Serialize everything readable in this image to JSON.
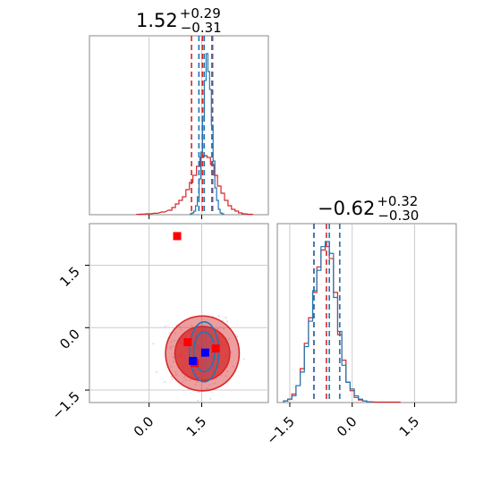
{
  "colors": {
    "red": "#d62728",
    "blue": "#1f77b4",
    "marker_red": "#ff0000",
    "marker_blue": "#0000ff",
    "grid": "#cccccc"
  },
  "chart_data": [
    {
      "type": "histogram",
      "panel": "marginal-param-1",
      "title": {
        "median": "1.52",
        "plus": "+0.29",
        "minus": "−0.31"
      },
      "xlim": [
        -1.7,
        3.4
      ],
      "x_ticks": [
        "0.0",
        "1.5"
      ],
      "series": [
        {
          "color": "red",
          "quantiles": [
            1.21,
            1.52,
            1.81
          ],
          "bins": [
            [
              -0.3,
              0.002
            ],
            [
              -0.2,
              0.003
            ],
            [
              0.0,
              0.005
            ],
            [
              0.2,
              0.008
            ],
            [
              0.4,
              0.015
            ],
            [
              0.6,
              0.025
            ],
            [
              0.7,
              0.04
            ],
            [
              0.8,
              0.06
            ],
            [
              0.9,
              0.08
            ],
            [
              1.0,
              0.1
            ],
            [
              1.1,
              0.14
            ],
            [
              1.2,
              0.18
            ],
            [
              1.3,
              0.22
            ],
            [
              1.4,
              0.27
            ],
            [
              1.5,
              0.32
            ],
            [
              1.6,
              0.33
            ],
            [
              1.7,
              0.32
            ],
            [
              1.8,
              0.28
            ],
            [
              1.9,
              0.22
            ],
            [
              2.0,
              0.16
            ],
            [
              2.1,
              0.12
            ],
            [
              2.2,
              0.08
            ],
            [
              2.3,
              0.05
            ],
            [
              2.4,
              0.03
            ],
            [
              2.5,
              0.02
            ],
            [
              2.6,
              0.01
            ],
            [
              2.7,
              0.005
            ],
            [
              2.9,
              0.002
            ]
          ]
        },
        {
          "color": "blue",
          "quantiles": [
            1.42,
            1.57,
            1.79
          ],
          "bins": [
            [
              1.2,
              0.005
            ],
            [
              1.25,
              0.01
            ],
            [
              1.3,
              0.02
            ],
            [
              1.35,
              0.05
            ],
            [
              1.4,
              0.1
            ],
            [
              1.45,
              0.2
            ],
            [
              1.5,
              0.35
            ],
            [
              1.55,
              0.55
            ],
            [
              1.6,
              0.75
            ],
            [
              1.65,
              0.9
            ],
            [
              1.7,
              0.8
            ],
            [
              1.75,
              0.7
            ],
            [
              1.8,
              0.5
            ],
            [
              1.85,
              0.3
            ],
            [
              1.9,
              0.15
            ],
            [
              1.95,
              0.08
            ],
            [
              2.0,
              0.03
            ],
            [
              2.05,
              0.01
            ],
            [
              2.1,
              0.005
            ]
          ]
        }
      ]
    },
    {
      "type": "histogram",
      "panel": "marginal-param-2",
      "title": {
        "median": "−0.62",
        "plus": "+0.32",
        "minus": "−0.30"
      },
      "xlim": [
        -1.8,
        2.5
      ],
      "x_ticks": [
        "−1.5",
        "0.0",
        "1.5"
      ],
      "series": [
        {
          "color": "red",
          "quantiles": [
            -0.92,
            -0.62,
            -0.3
          ],
          "bins": [
            [
              -1.6,
              0.01
            ],
            [
              -1.5,
              0.02
            ],
            [
              -1.4,
              0.05
            ],
            [
              -1.3,
              0.1
            ],
            [
              -1.2,
              0.2
            ],
            [
              -1.1,
              0.35
            ],
            [
              -1.0,
              0.5
            ],
            [
              -0.9,
              0.65
            ],
            [
              -0.8,
              0.8
            ],
            [
              -0.7,
              0.9
            ],
            [
              -0.6,
              0.92
            ],
            [
              -0.5,
              0.85
            ],
            [
              -0.4,
              0.65
            ],
            [
              -0.3,
              0.4
            ],
            [
              -0.2,
              0.25
            ],
            [
              -0.1,
              0.12
            ],
            [
              0.0,
              0.07
            ],
            [
              0.1,
              0.03
            ],
            [
              0.2,
              0.015
            ],
            [
              0.3,
              0.01
            ],
            [
              0.4,
              0.005
            ],
            [
              0.6,
              0.003
            ],
            [
              1.1,
              0.003
            ]
          ]
        },
        {
          "color": "blue",
          "quantiles": [
            -0.92,
            -0.55,
            -0.3
          ],
          "bins": [
            [
              -1.6,
              0.01
            ],
            [
              -1.5,
              0.02
            ],
            [
              -1.4,
              0.04
            ],
            [
              -1.3,
              0.1
            ],
            [
              -1.2,
              0.18
            ],
            [
              -1.1,
              0.33
            ],
            [
              -1.0,
              0.48
            ],
            [
              -0.9,
              0.66
            ],
            [
              -0.8,
              0.78
            ],
            [
              -0.7,
              0.92
            ],
            [
              -0.6,
              0.95
            ],
            [
              -0.5,
              0.88
            ],
            [
              -0.4,
              0.62
            ],
            [
              -0.3,
              0.42
            ],
            [
              -0.2,
              0.22
            ],
            [
              -0.1,
              0.12
            ],
            [
              0.0,
              0.08
            ],
            [
              0.1,
              0.04
            ],
            [
              0.2,
              0.02
            ],
            [
              0.3,
              0.01
            ],
            [
              0.4,
              0.005
            ]
          ]
        }
      ]
    },
    {
      "type": "scatter",
      "panel": "joint-param1-param2",
      "xlim": [
        -1.7,
        3.4
      ],
      "ylim": [
        -1.8,
        2.5
      ],
      "x_ticks": [
        "0.0",
        "1.5"
      ],
      "y_ticks": [
        "−1.5",
        "0.0",
        "1.5"
      ],
      "contours": {
        "red": [
          {
            "cx": 1.52,
            "cy": -0.62,
            "rx": 1.05,
            "ry": 0.9
          },
          {
            "cx": 1.52,
            "cy": -0.62,
            "rx": 0.78,
            "ry": 0.65
          }
        ],
        "blue": [
          {
            "cx": 1.57,
            "cy": -0.58,
            "rx": 0.42,
            "ry": 0.72
          },
          {
            "cx": 1.57,
            "cy": -0.58,
            "rx": 0.3,
            "ry": 0.48
          }
        ]
      },
      "markers": [
        {
          "color": "marker_red",
          "x": 0.8,
          "y": 2.2
        },
        {
          "color": "marker_red",
          "x": 1.1,
          "y": -0.35
        },
        {
          "color": "marker_red",
          "x": 1.3,
          "y": -0.85
        },
        {
          "color": "marker_red",
          "x": 1.9,
          "y": -0.5
        },
        {
          "color": "marker_blue",
          "x": 1.6,
          "y": -0.6
        },
        {
          "color": "marker_blue",
          "x": 1.25,
          "y": -0.8
        }
      ]
    }
  ]
}
